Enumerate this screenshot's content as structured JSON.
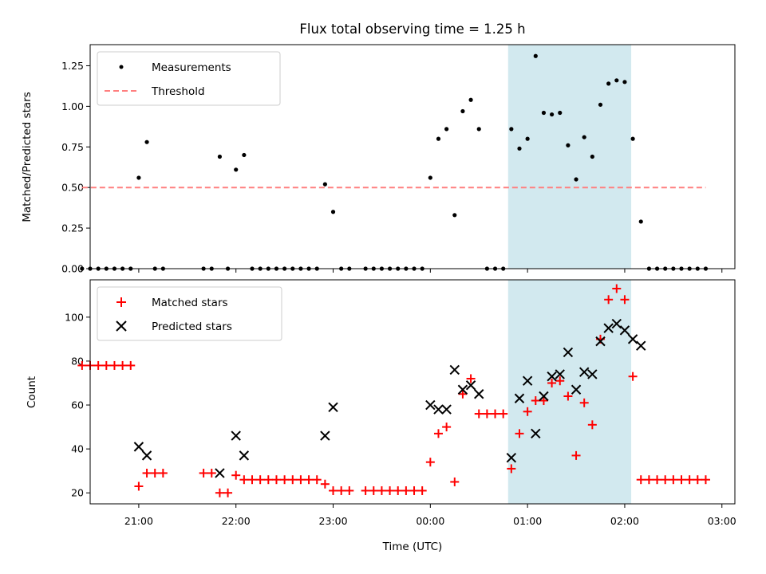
{
  "chart_data": {
    "type": "scatter",
    "title": "Flux total observing time = 1.25 h",
    "xlabel": "Time (UTC)",
    "x_unit": "UTC clock time",
    "xlim": [
      "20:30",
      "03:08"
    ],
    "xticks": [
      "21:00",
      "22:00",
      "23:00",
      "00:00",
      "01:00",
      "02:00",
      "03:00"
    ],
    "highlight_interval": {
      "start": "00:48",
      "end": "02:04",
      "color": "#d2e9ef"
    },
    "panels": [
      {
        "name": "ratio",
        "ylabel": "Matched/Predicted stars",
        "ylim": [
          0,
          1.38
        ],
        "yticks": [
          "0.00",
          "0.25",
          "0.50",
          "0.75",
          "1.00",
          "1.25"
        ],
        "legend": {
          "placement": "upper-left"
        },
        "series": [
          {
            "name": "Measurements",
            "marker": "dot",
            "color": "#000000",
            "points": [
              [
                "20:25",
                0
              ],
              [
                "20:30",
                0
              ],
              [
                "20:35",
                0
              ],
              [
                "20:40",
                0
              ],
              [
                "20:45",
                0
              ],
              [
                "20:50",
                0
              ],
              [
                "20:55",
                0
              ],
              [
                "21:00",
                0.56
              ],
              [
                "21:05",
                0.78
              ],
              [
                "21:10",
                0
              ],
              [
                "21:15",
                0
              ],
              [
                "21:40",
                0
              ],
              [
                "21:45",
                0
              ],
              [
                "21:50",
                0.69
              ],
              [
                "21:55",
                0
              ],
              [
                "22:00",
                0.61
              ],
              [
                "22:05",
                0.7
              ],
              [
                "22:10",
                0
              ],
              [
                "22:15",
                0
              ],
              [
                "22:20",
                0
              ],
              [
                "22:25",
                0
              ],
              [
                "22:30",
                0
              ],
              [
                "22:35",
                0
              ],
              [
                "22:40",
                0
              ],
              [
                "22:45",
                0
              ],
              [
                "22:50",
                0
              ],
              [
                "22:55",
                0.52
              ],
              [
                "23:00",
                0.35
              ],
              [
                "23:05",
                0
              ],
              [
                "23:10",
                0
              ],
              [
                "23:20",
                0
              ],
              [
                "23:25",
                0
              ],
              [
                "23:30",
                0
              ],
              [
                "23:35",
                0
              ],
              [
                "23:40",
                0
              ],
              [
                "23:45",
                0
              ],
              [
                "23:50",
                0
              ],
              [
                "23:55",
                0
              ],
              [
                "00:00",
                0.56
              ],
              [
                "00:05",
                0.8
              ],
              [
                "00:10",
                0.86
              ],
              [
                "00:15",
                0.33
              ],
              [
                "00:20",
                0.97
              ],
              [
                "00:25",
                1.04
              ],
              [
                "00:30",
                0.86
              ],
              [
                "00:35",
                0
              ],
              [
                "00:40",
                0
              ],
              [
                "00:45",
                0
              ],
              [
                "00:50",
                0.86
              ],
              [
                "00:55",
                0.74
              ],
              [
                "01:00",
                0.8
              ],
              [
                "01:05",
                1.31
              ],
              [
                "01:10",
                0.96
              ],
              [
                "01:15",
                0.95
              ],
              [
                "01:20",
                0.96
              ],
              [
                "01:25",
                0.76
              ],
              [
                "01:30",
                0.55
              ],
              [
                "01:35",
                0.81
              ],
              [
                "01:40",
                0.69
              ],
              [
                "01:45",
                1.01
              ],
              [
                "01:50",
                1.14
              ],
              [
                "01:55",
                1.16
              ],
              [
                "02:00",
                1.15
              ],
              [
                "02:05",
                0.8
              ],
              [
                "02:10",
                0.29
              ],
              [
                "02:15",
                0
              ],
              [
                "02:20",
                0
              ],
              [
                "02:25",
                0
              ],
              [
                "02:30",
                0
              ],
              [
                "02:35",
                0
              ],
              [
                "02:40",
                0
              ],
              [
                "02:45",
                0
              ],
              [
                "02:50",
                0
              ]
            ]
          },
          {
            "name": "Threshold",
            "style": "dashed-line",
            "color": "#ff7f7f",
            "points": [
              [
                "20:25",
                0.5
              ],
              [
                "02:50",
                0.5
              ]
            ]
          }
        ]
      },
      {
        "name": "counts",
        "ylabel": "Count",
        "ylim": [
          15,
          117
        ],
        "yticks": [
          "20",
          "40",
          "60",
          "80",
          "100"
        ],
        "legend": {
          "placement": "upper-left"
        },
        "series": [
          {
            "name": "Matched stars",
            "marker": "plus",
            "color": "#ff0000",
            "points": [
              [
                "20:25",
                78
              ],
              [
                "20:30",
                78
              ],
              [
                "20:35",
                78
              ],
              [
                "20:40",
                78
              ],
              [
                "20:45",
                78
              ],
              [
                "20:50",
                78
              ],
              [
                "20:55",
                78
              ],
              [
                "21:00",
                23
              ],
              [
                "21:05",
                29
              ],
              [
                "21:10",
                29
              ],
              [
                "21:15",
                29
              ],
              [
                "21:40",
                29
              ],
              [
                "21:45",
                29
              ],
              [
                "21:50",
                20
              ],
              [
                "21:55",
                20
              ],
              [
                "22:00",
                28
              ],
              [
                "22:05",
                26
              ],
              [
                "22:10",
                26
              ],
              [
                "22:15",
                26
              ],
              [
                "22:20",
                26
              ],
              [
                "22:25",
                26
              ],
              [
                "22:30",
                26
              ],
              [
                "22:35",
                26
              ],
              [
                "22:40",
                26
              ],
              [
                "22:45",
                26
              ],
              [
                "22:50",
                26
              ],
              [
                "22:55",
                24
              ],
              [
                "23:00",
                21
              ],
              [
                "23:05",
                21
              ],
              [
                "23:10",
                21
              ],
              [
                "23:20",
                21
              ],
              [
                "23:25",
                21
              ],
              [
                "23:30",
                21
              ],
              [
                "23:35",
                21
              ],
              [
                "23:40",
                21
              ],
              [
                "23:45",
                21
              ],
              [
                "23:50",
                21
              ],
              [
                "23:55",
                21
              ],
              [
                "00:00",
                34
              ],
              [
                "00:05",
                47
              ],
              [
                "00:10",
                50
              ],
              [
                "00:15",
                25
              ],
              [
                "00:20",
                65
              ],
              [
                "00:25",
                72
              ],
              [
                "00:30",
                56
              ],
              [
                "00:35",
                56
              ],
              [
                "00:40",
                56
              ],
              [
                "00:45",
                56
              ],
              [
                "00:50",
                31
              ],
              [
                "00:55",
                47
              ],
              [
                "01:00",
                57
              ],
              [
                "01:05",
                62
              ],
              [
                "01:10",
                62
              ],
              [
                "01:15",
                70
              ],
              [
                "01:20",
                71
              ],
              [
                "01:25",
                64
              ],
              [
                "01:30",
                37
              ],
              [
                "01:35",
                61
              ],
              [
                "01:40",
                51
              ],
              [
                "01:45",
                90
              ],
              [
                "01:50",
                108
              ],
              [
                "01:55",
                113
              ],
              [
                "02:00",
                108
              ],
              [
                "02:05",
                73
              ],
              [
                "02:10",
                26
              ],
              [
                "02:15",
                26
              ],
              [
                "02:20",
                26
              ],
              [
                "02:25",
                26
              ],
              [
                "02:30",
                26
              ],
              [
                "02:35",
                26
              ],
              [
                "02:40",
                26
              ],
              [
                "02:45",
                26
              ],
              [
                "02:50",
                26
              ]
            ]
          },
          {
            "name": "Predicted stars",
            "marker": "x",
            "color": "#000000",
            "points": [
              [
                "21:00",
                41
              ],
              [
                "21:05",
                37
              ],
              [
                "21:50",
                29
              ],
              [
                "22:00",
                46
              ],
              [
                "22:05",
                37
              ],
              [
                "22:55",
                46
              ],
              [
                "23:00",
                59
              ],
              [
                "00:00",
                60
              ],
              [
                "00:05",
                58
              ],
              [
                "00:10",
                58
              ],
              [
                "00:15",
                76
              ],
              [
                "00:20",
                67
              ],
              [
                "00:25",
                69
              ],
              [
                "00:30",
                65
              ],
              [
                "00:50",
                36
              ],
              [
                "00:55",
                63
              ],
              [
                "01:00",
                71
              ],
              [
                "01:05",
                47
              ],
              [
                "01:10",
                64
              ],
              [
                "01:15",
                73
              ],
              [
                "01:20",
                74
              ],
              [
                "01:25",
                84
              ],
              [
                "01:30",
                67
              ],
              [
                "01:35",
                75
              ],
              [
                "01:40",
                74
              ],
              [
                "01:45",
                89
              ],
              [
                "01:50",
                95
              ],
              [
                "01:55",
                97
              ],
              [
                "02:00",
                94
              ],
              [
                "02:05",
                90
              ],
              [
                "02:10",
                87
              ]
            ]
          }
        ]
      }
    ]
  }
}
